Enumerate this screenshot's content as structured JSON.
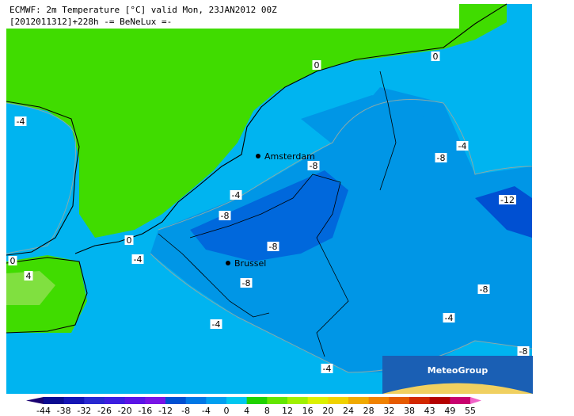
{
  "header": {
    "line1": "ECMWF: 2m Temperature [°C] valid Mon, 23JAN2012 00Z",
    "line2": "[2012011312]+228h -= BeNeLux =-"
  },
  "cities": [
    "Amsterdam",
    "Brussel"
  ],
  "contour_labels": [
    "0",
    "0",
    "-4",
    "-4",
    "-8",
    "-8",
    "-4",
    "-12",
    "-8",
    "0",
    "-4",
    "-8",
    "0",
    "4",
    "-8",
    "-8",
    "-4",
    "-4",
    "-4",
    "-8"
  ],
  "logo": "MeteoGroup",
  "legend": {
    "ticks": [
      -44,
      -38,
      -32,
      -26,
      -20,
      -16,
      -12,
      -8,
      -4,
      0,
      4,
      8,
      12,
      16,
      20,
      24,
      28,
      32,
      38,
      43,
      49,
      55
    ],
    "colors": [
      "#1a0070",
      "#0a0a90",
      "#1414b4",
      "#2828d0",
      "#3c1ee0",
      "#5a14e6",
      "#7814e6",
      "#0050d2",
      "#0078e6",
      "#00a0f0",
      "#00c8f0",
      "#20d200",
      "#64e600",
      "#a0f000",
      "#dcf000",
      "#f0d200",
      "#f0aa00",
      "#f08200",
      "#e65a00",
      "#d22800",
      "#b40000",
      "#c8006e",
      "#f064c8"
    ]
  }
}
